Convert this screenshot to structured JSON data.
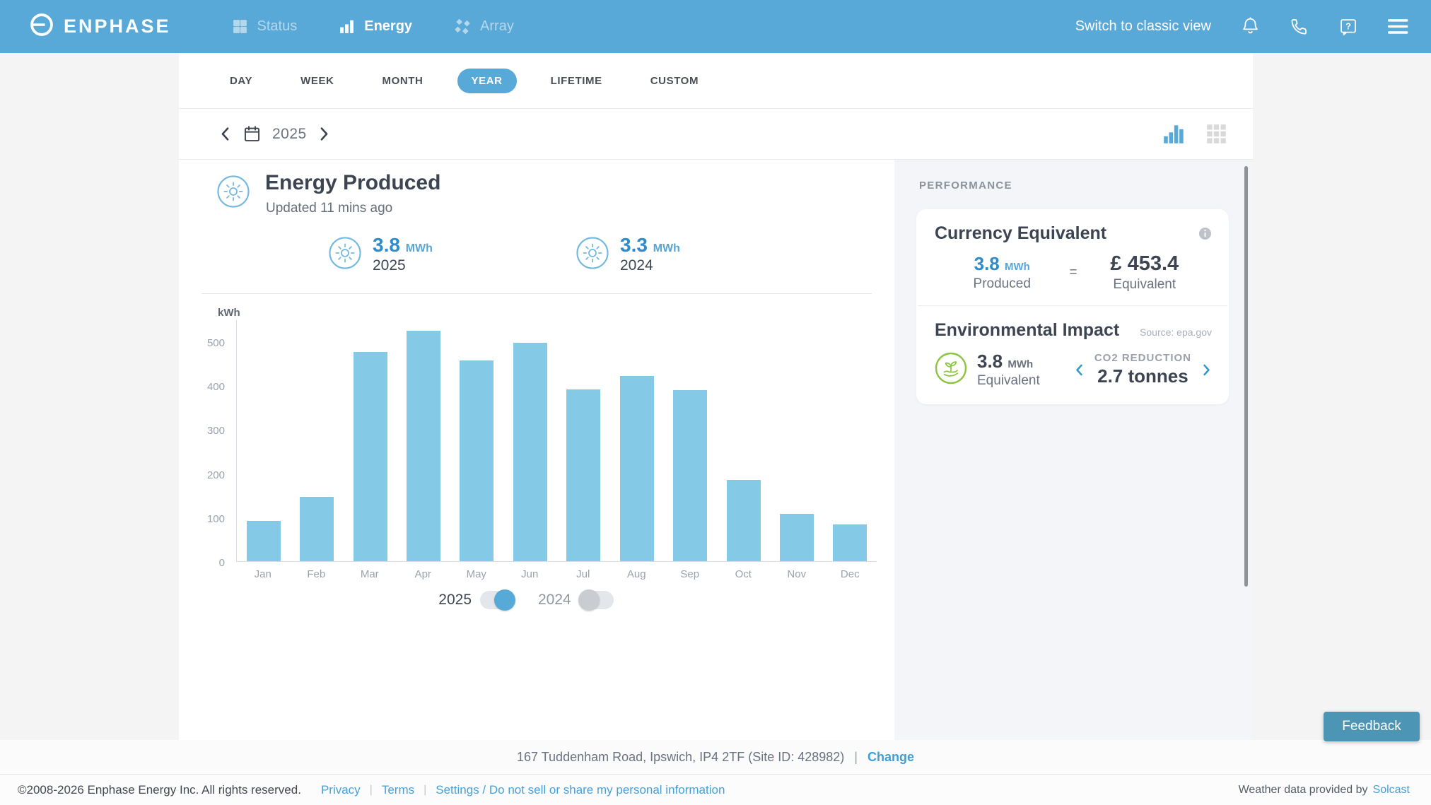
{
  "header": {
    "brand": "ENPHASE",
    "nav": [
      {
        "label": "Status",
        "icon": "status-grid-icon",
        "active": false
      },
      {
        "label": "Energy",
        "icon": "energy-bars-icon",
        "active": true
      },
      {
        "label": "Array",
        "icon": "array-panels-icon",
        "active": false
      }
    ],
    "classic_view_label": "Switch to classic view",
    "action_icons": [
      "bell-icon",
      "phone-icon",
      "help-icon",
      "menu-icon"
    ]
  },
  "tabs": [
    "DAY",
    "WEEK",
    "MONTH",
    "YEAR",
    "LIFETIME",
    "CUSTOM"
  ],
  "active_tab": "YEAR",
  "date_nav": {
    "year": "2025",
    "icons": [
      "chevron-left-icon",
      "calendar-icon",
      "chevron-right-icon"
    ]
  },
  "view_toggle": {
    "options": [
      "bar-chart-view-icon",
      "grid-view-icon"
    ],
    "active": "bar-chart-view-icon"
  },
  "energy": {
    "title": "Energy Produced",
    "updated": "Updated 11 mins ago",
    "icon": "sun-icon",
    "stats": [
      {
        "value": "3.8",
        "unit": "MWh",
        "period": "2025"
      },
      {
        "value": "3.3",
        "unit": "MWh",
        "period": "2024"
      }
    ]
  },
  "chart_data": {
    "type": "bar",
    "title": "Energy Produced",
    "ylabel": "kWh",
    "categories": [
      "Jan",
      "Feb",
      "Mar",
      "Apr",
      "May",
      "Jun",
      "Jul",
      "Aug",
      "Sep",
      "Oct",
      "Nov",
      "Dec"
    ],
    "values": [
      92,
      146,
      476,
      524,
      457,
      497,
      391,
      421,
      390,
      185,
      108,
      84
    ],
    "ylim": [
      0,
      550
    ],
    "yticks": [
      0,
      100,
      200,
      300,
      400,
      500
    ],
    "grid": false,
    "legend_position": "bottom",
    "bar_color": "#84c9e6",
    "series_toggles": [
      {
        "label": "2025",
        "on": true
      },
      {
        "label": "2024",
        "on": false
      }
    ]
  },
  "performance": {
    "heading": "PERFORMANCE",
    "currency": {
      "title": "Currency Equivalent",
      "info_icon": "info-icon",
      "produced_value": "3.8",
      "produced_unit": "MWh",
      "produced_label": "Produced",
      "equals": "=",
      "amount": "£ 453.4",
      "amount_label": "Equivalent"
    },
    "environment": {
      "title": "Environmental Impact",
      "source": "Source: epa.gov",
      "icon": "eco-hand-plant-icon",
      "value": "3.8",
      "unit": "MWh",
      "value_label": "Equivalent",
      "co2_title": "CO2 REDUCTION",
      "co2_value": "2.7 tonnes"
    }
  },
  "site_bar": {
    "address": "167 Tuddenham Road, Ipswich, IP4 2TF (Site ID: 428982)",
    "separator": "|",
    "change_label": "Change"
  },
  "footer": {
    "copyright": "©2008-2026 Enphase Energy Inc. All rights reserved.",
    "links": [
      "Privacy",
      "Terms",
      "Settings / Do not sell or share my personal information"
    ],
    "link_separator": "|",
    "weather_text": "Weather data provided by",
    "weather_link": "Solcast"
  },
  "feedback_label": "Feedback",
  "colors": {
    "header_blue": "#58a8d8",
    "accent_blue": "#2e8cca",
    "bar_blue": "#84c9e6",
    "link_blue": "#45a0da",
    "eco_green": "#8bc53f",
    "feedback_blue": "#4d95b5"
  }
}
